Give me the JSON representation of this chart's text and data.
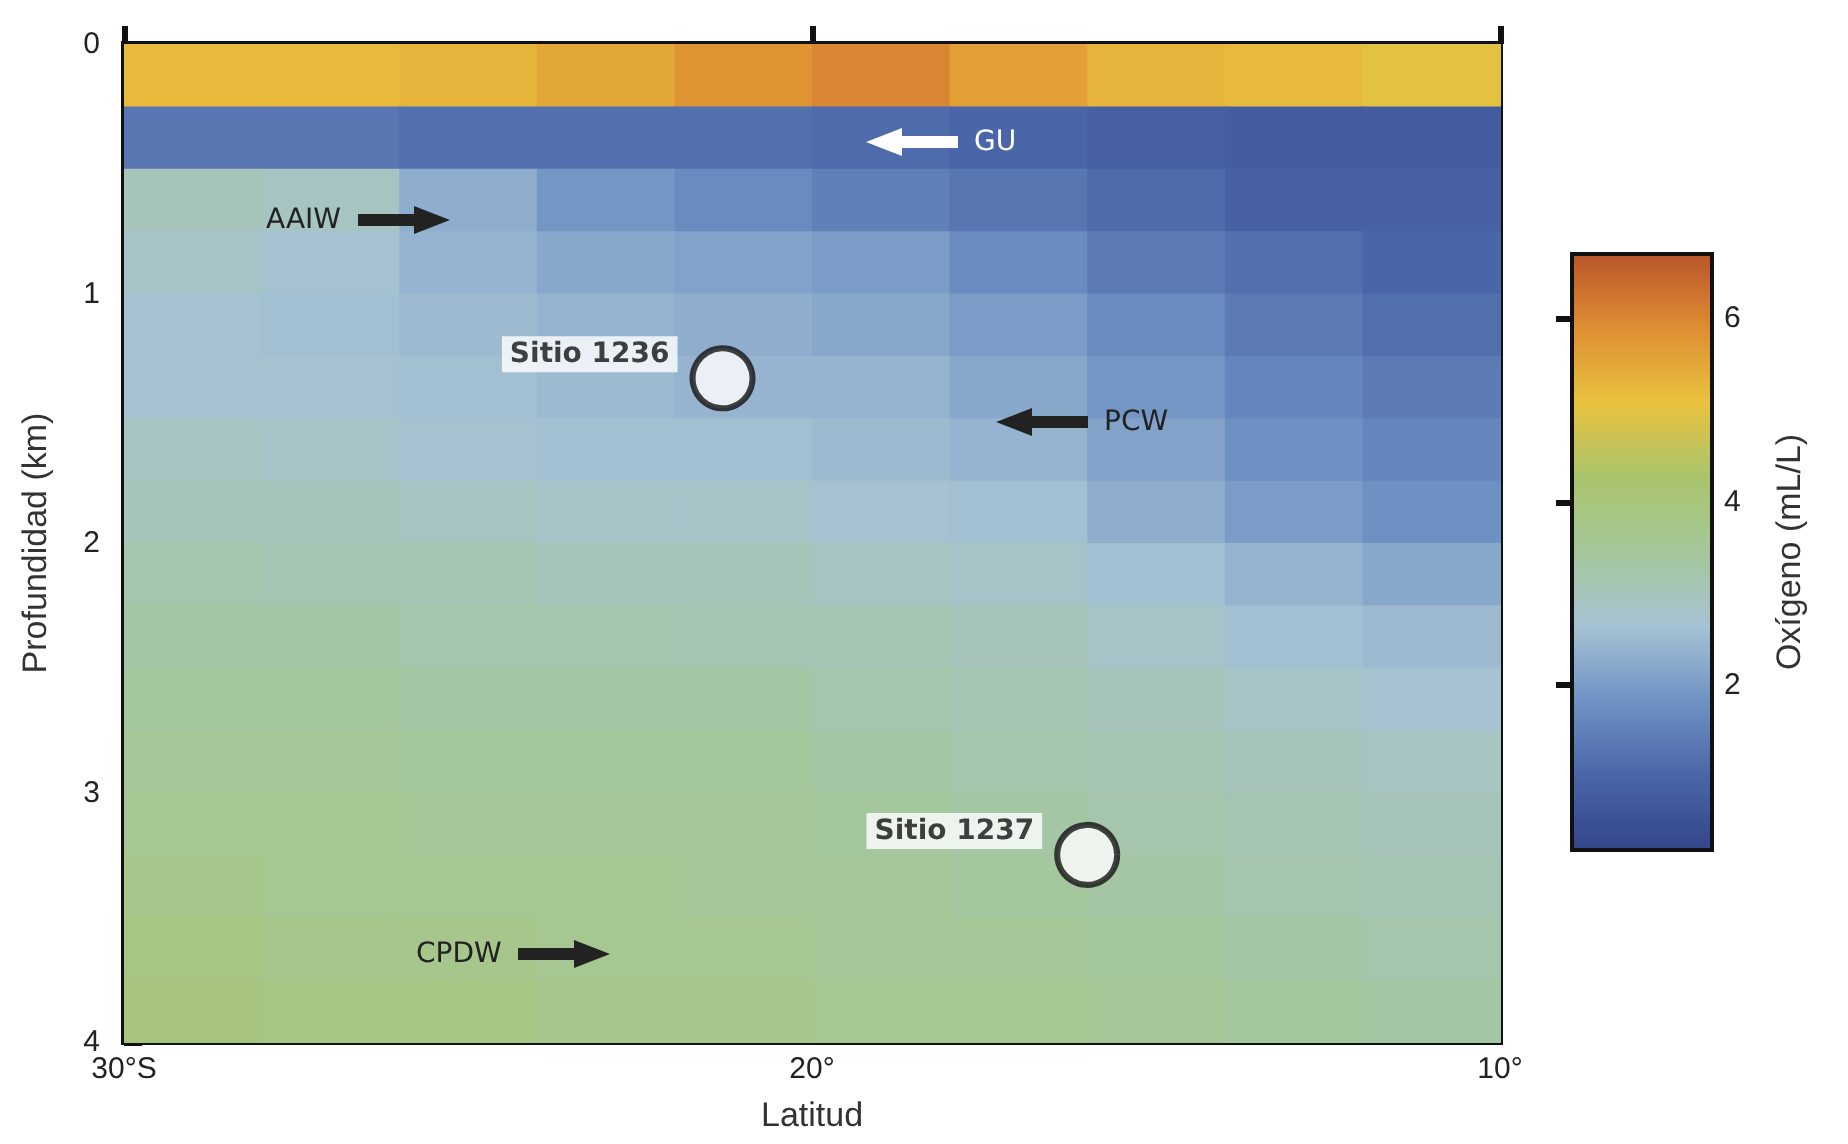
{
  "chart_data": {
    "type": "heatmap",
    "xlabel": "Latitud",
    "ylabel": "Profundidad (km)",
    "clabel": "Oxígeno (mL/L)",
    "x": [
      -29,
      -27,
      -25,
      -23,
      -21,
      -19,
      -17,
      -15,
      -13,
      -11
    ],
    "y": [
      0.125,
      0.375,
      0.625,
      0.875,
      1.125,
      1.375,
      1.625,
      1.875,
      2.125,
      2.375,
      2.625,
      2.875,
      3.125,
      3.375,
      3.625,
      3.875
    ],
    "cells": [
      [
        5.2,
        5.2,
        5.3,
        5.5,
        5.8,
        6.0,
        5.6,
        5.3,
        5.2,
        5.0
      ],
      [
        1.3,
        1.3,
        1.2,
        1.2,
        1.2,
        1.1,
        1.0,
        0.9,
        0.8,
        0.8
      ],
      [
        3.0,
        2.9,
        2.3,
        1.9,
        1.7,
        1.5,
        1.3,
        1.1,
        0.9,
        0.9
      ],
      [
        2.8,
        2.7,
        2.4,
        2.2,
        2.1,
        2.0,
        1.7,
        1.4,
        1.2,
        1.0
      ],
      [
        2.7,
        2.6,
        2.5,
        2.4,
        2.3,
        2.2,
        2.0,
        1.7,
        1.4,
        1.2
      ],
      [
        2.7,
        2.7,
        2.6,
        2.5,
        2.4,
        2.4,
        2.2,
        1.9,
        1.6,
        1.4
      ],
      [
        2.9,
        2.8,
        2.7,
        2.6,
        2.6,
        2.5,
        2.4,
        2.1,
        1.8,
        1.6
      ],
      [
        3.0,
        3.0,
        2.9,
        2.8,
        2.8,
        2.7,
        2.6,
        2.3,
        2.0,
        1.8
      ],
      [
        3.2,
        3.1,
        3.1,
        3.0,
        3.0,
        2.9,
        2.8,
        2.6,
        2.4,
        2.2
      ],
      [
        3.3,
        3.3,
        3.2,
        3.2,
        3.1,
        3.1,
        3.0,
        2.8,
        2.6,
        2.5
      ],
      [
        3.4,
        3.4,
        3.3,
        3.3,
        3.3,
        3.2,
        3.1,
        3.0,
        2.8,
        2.7
      ],
      [
        3.5,
        3.5,
        3.4,
        3.4,
        3.4,
        3.3,
        3.2,
        3.1,
        3.0,
        2.9
      ],
      [
        3.6,
        3.6,
        3.5,
        3.5,
        3.5,
        3.4,
        3.3,
        3.2,
        3.1,
        3.0
      ],
      [
        3.7,
        3.6,
        3.6,
        3.6,
        3.5,
        3.5,
        3.4,
        3.3,
        3.2,
        3.1
      ],
      [
        3.8,
        3.7,
        3.7,
        3.6,
        3.6,
        3.5,
        3.5,
        3.4,
        3.3,
        3.2
      ],
      [
        3.9,
        3.8,
        3.8,
        3.7,
        3.7,
        3.6,
        3.6,
        3.5,
        3.4,
        3.3
      ]
    ],
    "clim": [
      0.2,
      6.7
    ],
    "cticks": [
      2,
      4,
      6
    ],
    "colors": [
      "#34458a",
      "#4a66a8",
      "#6f92c4",
      "#a6c2d4",
      "#a5c79a",
      "#a9c46c",
      "#e9c23e",
      "#de8e33",
      "#b9552a"
    ],
    "xlim": [
      -30,
      -10
    ],
    "xticks": [
      {
        "value": -30,
        "label": "30°S"
      },
      {
        "value": -20,
        "label": "20°"
      },
      {
        "value": -10,
        "label": "10°"
      }
    ],
    "ylim": [
      4,
      0
    ],
    "yticks": [
      0,
      1,
      2,
      3,
      4
    ],
    "series": [
      {
        "type": "scatter",
        "color": "#ffffff",
        "x": [
          -21.3,
          -16.0
        ],
        "values": [
          1.34,
          3.25
        ],
        "value_labels": [
          "Sitio 1236",
          "Sitio 1237"
        ]
      }
    ],
    "annotations": [
      "GU",
      "AAIW",
      "PCW",
      "CPDW"
    ]
  }
}
